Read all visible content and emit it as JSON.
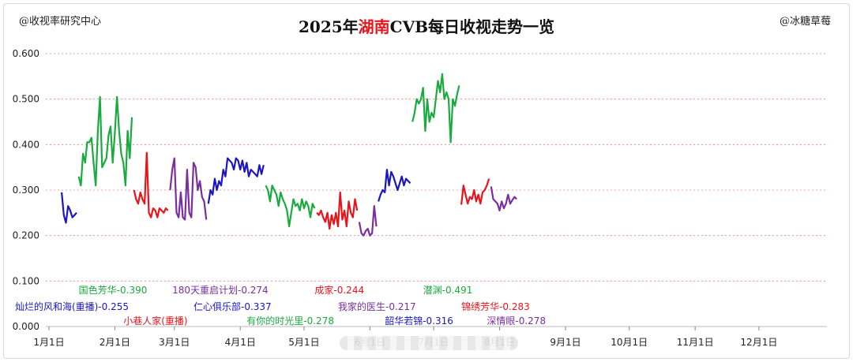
{
  "header": {
    "left_tag": "@收视率研究中心",
    "right_tag": "@冰糖草莓",
    "title_pre": "2025年",
    "title_hl": "湖南",
    "title_post": "CVB每日收视走势一览"
  },
  "colors": {
    "green": "#1aab3f",
    "red": "#e8141c",
    "purple": "#7a2ea0",
    "blue": "#1b16c2",
    "grid": "#f08080",
    "highlight": "#e8141c"
  },
  "chart_data": {
    "type": "line",
    "title": "2025年湖南CVB每日收视走势一览",
    "ylim": [
      0,
      0.6
    ],
    "yticks": [
      "0.000",
      "0.100",
      "0.200",
      "0.300",
      "0.400",
      "0.500",
      "0.600"
    ],
    "ytick_values": [
      0,
      0.1,
      0.2,
      0.3,
      0.4,
      0.5,
      0.6
    ],
    "xlim": [
      1,
      367
    ],
    "x_ticks": [
      "1月1日",
      "2月1日",
      "3月1日",
      "4月1日",
      "5月1日",
      "6月1日",
      "7月1日",
      "8月1日",
      "9月1日",
      "10月1日",
      "11月1日",
      "12月1日"
    ],
    "x_tick_days": [
      1,
      32,
      60,
      91,
      121,
      152,
      182,
      213,
      244,
      274,
      305,
      335
    ],
    "x_unit": "day of year",
    "grid": true,
    "grid_style": "dashed horizontal",
    "series": [
      {
        "name": "灿烂的风和海(重播)",
        "color_key": "blue",
        "avg_label": "0.255",
        "x": [
          7,
          8,
          9,
          10,
          11,
          12,
          13,
          14
        ],
        "y": [
          0.295,
          0.245,
          0.228,
          0.265,
          0.255,
          0.24,
          0.245,
          0.25
        ]
      },
      {
        "name": "国色芳华",
        "color_key": "green",
        "avg_label": "0.390",
        "x": [
          15,
          16,
          17,
          18,
          19,
          20,
          21,
          22,
          23,
          24,
          25,
          26,
          27,
          28,
          29,
          30,
          31,
          32,
          33,
          34,
          35,
          36,
          37,
          38,
          39,
          40
        ],
        "y": [
          0.33,
          0.31,
          0.38,
          0.36,
          0.405,
          0.405,
          0.415,
          0.36,
          0.31,
          0.43,
          0.505,
          0.35,
          0.36,
          0.37,
          0.42,
          0.44,
          0.36,
          0.425,
          0.505,
          0.43,
          0.38,
          0.36,
          0.31,
          0.43,
          0.37,
          0.46
        ]
      },
      {
        "name": "小巷人家(重播)",
        "color_key": "red",
        "avg_label": "",
        "x": [
          41,
          42,
          43,
          44,
          45,
          46,
          47,
          48,
          49,
          50,
          51,
          52,
          53,
          54,
          55,
          56,
          57
        ],
        "y": [
          0.3,
          0.28,
          0.27,
          0.295,
          0.28,
          0.27,
          0.382,
          0.25,
          0.24,
          0.26,
          0.255,
          0.24,
          0.26,
          0.255,
          0.25,
          0.26,
          0.255
        ]
      },
      {
        "name": "180天重启计划",
        "color_key": "purple",
        "avg_label": "0.274",
        "x": [
          58,
          59,
          60,
          61,
          62,
          63,
          64,
          65,
          66,
          67,
          68,
          69,
          70,
          71,
          72,
          73,
          74,
          75
        ],
        "y": [
          0.3,
          0.345,
          0.37,
          0.25,
          0.24,
          0.295,
          0.24,
          0.235,
          0.345,
          0.25,
          0.24,
          0.36,
          0.35,
          0.3,
          0.32,
          0.285,
          0.275,
          0.235
        ]
      },
      {
        "name": "仁心俱乐部",
        "color_key": "blue",
        "avg_label": "0.337",
        "x": [
          76,
          77,
          78,
          79,
          80,
          81,
          82,
          83,
          84,
          85,
          86,
          87,
          88,
          89,
          90,
          91,
          92,
          93,
          94,
          95,
          96,
          97,
          98,
          99,
          100,
          101,
          102
        ],
        "y": [
          0.27,
          0.3,
          0.29,
          0.325,
          0.3,
          0.32,
          0.31,
          0.345,
          0.33,
          0.37,
          0.365,
          0.36,
          0.345,
          0.37,
          0.365,
          0.345,
          0.365,
          0.34,
          0.36,
          0.33,
          0.345,
          0.34,
          0.335,
          0.33,
          0.355,
          0.335,
          0.355
        ]
      },
      {
        "name": "有你的时光里",
        "color_key": "green",
        "avg_label": "0.278",
        "x": [
          103,
          104,
          105,
          106,
          107,
          108,
          109,
          110,
          111,
          112,
          113,
          114,
          115,
          116,
          117,
          118,
          119,
          120,
          121,
          122,
          123,
          124,
          125,
          126
        ],
        "y": [
          0.31,
          0.3,
          0.275,
          0.31,
          0.3,
          0.29,
          0.265,
          0.295,
          0.28,
          0.27,
          0.255,
          0.22,
          0.25,
          0.28,
          0.265,
          0.27,
          0.255,
          0.28,
          0.26,
          0.275,
          0.265,
          0.24,
          0.27,
          0.26
        ]
      },
      {
        "name": "成家",
        "color_key": "red",
        "avg_label": "0.244",
        "x": [
          127,
          128,
          129,
          130,
          131,
          132,
          133,
          134,
          135,
          136,
          137,
          138,
          139,
          140,
          141,
          142,
          143,
          144,
          145,
          146
        ],
        "y": [
          0.25,
          0.245,
          0.255,
          0.24,
          0.23,
          0.25,
          0.215,
          0.245,
          0.225,
          0.25,
          0.22,
          0.295,
          0.235,
          0.255,
          0.22,
          0.275,
          0.25,
          0.24,
          0.28,
          0.255
        ]
      },
      {
        "name": "我家的医生",
        "color_key": "purple",
        "avg_label": "0.217",
        "x": [
          147,
          148,
          149,
          150,
          151,
          152,
          153,
          154,
          155
        ],
        "y": [
          0.23,
          0.205,
          0.2,
          0.21,
          0.215,
          0.2,
          0.205,
          0.265,
          0.22
        ]
      },
      {
        "name": "韶华若锦",
        "color_key": "blue",
        "avg_label": "0.316",
        "x": [
          156,
          157,
          158,
          159,
          160,
          161,
          162,
          163,
          164,
          165,
          166,
          167,
          168,
          169,
          170,
          171
        ],
        "y": [
          0.275,
          0.29,
          0.3,
          0.295,
          0.345,
          0.31,
          0.34,
          0.33,
          0.315,
          0.3,
          0.315,
          0.33,
          0.31,
          0.325,
          0.32,
          0.315
        ]
      },
      {
        "name": "潜渊",
        "color_key": "green",
        "avg_label": "0.491",
        "x": [
          172,
          173,
          174,
          175,
          176,
          177,
          178,
          179,
          180,
          181,
          182,
          183,
          184,
          185,
          186,
          187,
          188,
          189,
          190,
          191,
          192,
          193,
          194
        ],
        "y": [
          0.45,
          0.47,
          0.5,
          0.49,
          0.5,
          0.525,
          0.43,
          0.5,
          0.45,
          0.47,
          0.46,
          0.5,
          0.54,
          0.515,
          0.555,
          0.5,
          0.515,
          0.5,
          0.405,
          0.5,
          0.485,
          0.51,
          0.53
        ]
      },
      {
        "name": "锦绣芳华",
        "color_key": "red",
        "avg_label": "0.283",
        "x": [
          195,
          196,
          197,
          198,
          199,
          200,
          201,
          202,
          203,
          204,
          205,
          206,
          207,
          208
        ],
        "y": [
          0.268,
          0.31,
          0.29,
          0.27,
          0.285,
          0.28,
          0.3,
          0.275,
          0.29,
          0.27,
          0.295,
          0.3,
          0.31,
          0.325
        ]
      },
      {
        "name": "深情眼",
        "color_key": "purple",
        "avg_label": "0.278",
        "x": [
          209,
          210,
          211,
          212,
          213,
          214,
          215,
          216,
          217,
          218,
          219,
          220,
          221
        ],
        "y": [
          0.308,
          0.28,
          0.275,
          0.27,
          0.255,
          0.275,
          0.26,
          0.27,
          0.29,
          0.27,
          0.278,
          0.285,
          0.28
        ]
      }
    ],
    "series_labels": [
      {
        "text": "国色芳华-0.390",
        "color_key": "green",
        "row": 0,
        "x_day": 15
      },
      {
        "text": "180天重启计划-0.274",
        "color_key": "purple",
        "row": 0,
        "x_day": 59
      },
      {
        "text": "成家-0.244",
        "color_key": "red",
        "row": 0,
        "x_day": 126
      },
      {
        "text": "潜渊-0.491",
        "color_key": "green",
        "row": 0,
        "x_day": 177
      },
      {
        "text": "灿烂的风和海(重播)-0.255",
        "color_key": "blue",
        "row": 1,
        "x_day": -15
      },
      {
        "text": "仁心俱乐部-0.337",
        "color_key": "blue",
        "row": 1,
        "x_day": 69
      },
      {
        "text": "我家的医生-0.217",
        "color_key": "purple",
        "row": 1,
        "x_day": 137
      },
      {
        "text": "锦绣芳华-0.283",
        "color_key": "red",
        "row": 1,
        "x_day": 195
      },
      {
        "text": "小巷人家(重播)",
        "color_key": "red",
        "row": 2,
        "x_day": 36
      },
      {
        "text": "有你的时光里-0.278",
        "color_key": "green",
        "row": 2,
        "x_day": 94
      },
      {
        "text": "韶华若锦-0.316",
        "color_key": "blue",
        "row": 2,
        "x_day": 159
      },
      {
        "text": "深情眼-0.278",
        "color_key": "purple",
        "row": 2,
        "x_day": 207
      }
    ]
  }
}
